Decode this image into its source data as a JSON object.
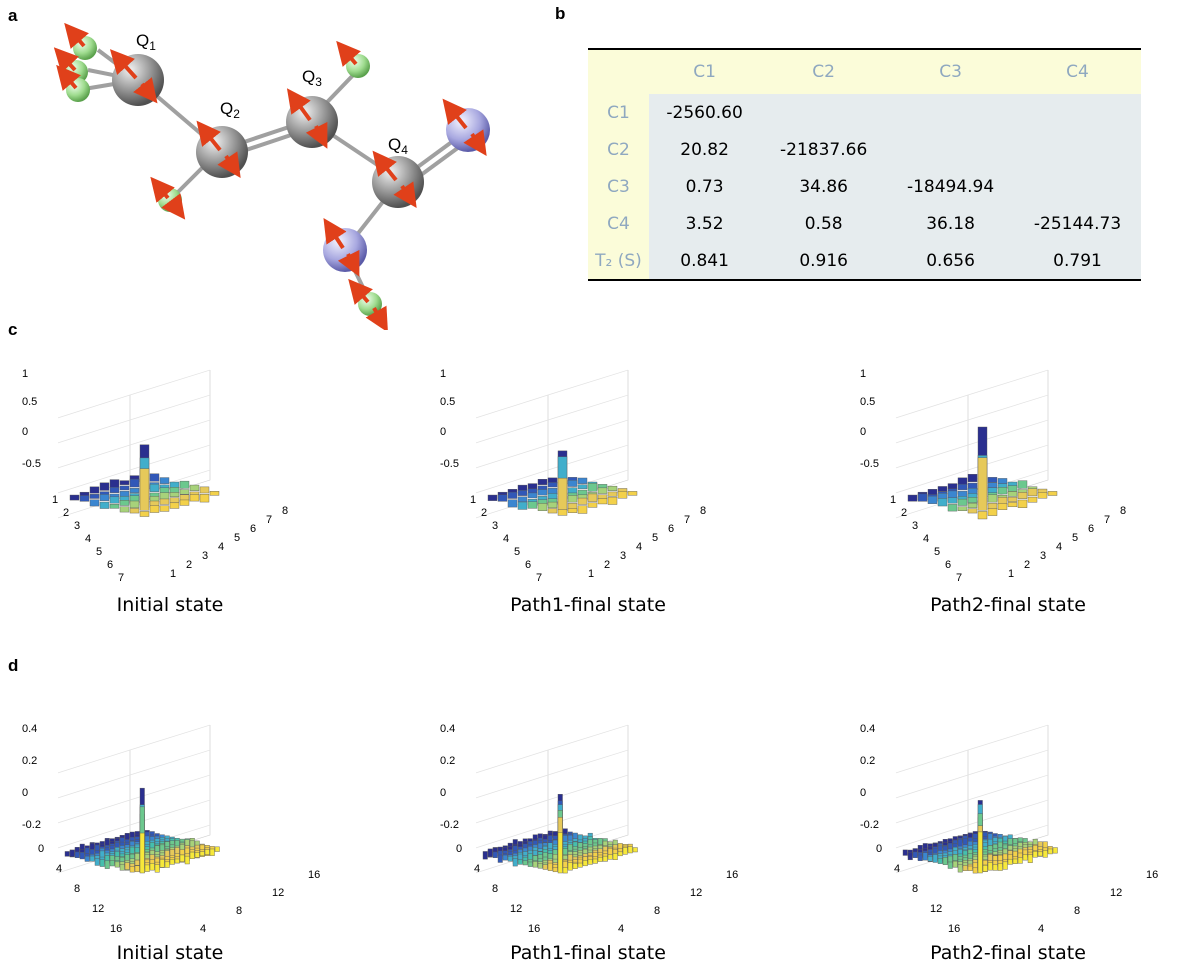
{
  "panels": {
    "a": "a",
    "b": "b",
    "c": "c",
    "d": "d"
  },
  "molecule": {
    "labels": [
      "Q",
      "Q",
      "Q",
      "Q"
    ],
    "subscripts": [
      "1",
      "2",
      "3",
      "4"
    ]
  },
  "table": {
    "headers": [
      "",
      "C1",
      "C2",
      "C3",
      "C4"
    ],
    "rows": [
      {
        "label": "C1",
        "cells": [
          "-2560.60",
          "",
          "",
          ""
        ]
      },
      {
        "label": "C2",
        "cells": [
          "20.82",
          "-21837.66",
          "",
          ""
        ]
      },
      {
        "label": "C3",
        "cells": [
          "0.73",
          "34.86",
          "-18494.94",
          ""
        ]
      },
      {
        "label": "C4",
        "cells": [
          "3.52",
          "0.58",
          "36.18",
          "-25144.73"
        ]
      },
      {
        "label": "T₂ (S)",
        "cells": [
          "0.841",
          "0.916",
          "0.656",
          "0.791"
        ]
      }
    ]
  },
  "panel_c": {
    "captions": [
      "Initial state",
      "Path1-final state",
      "Path2-final state"
    ],
    "z_ticks": [
      "1",
      "0.5",
      "0",
      "-0.5"
    ],
    "axis_ticks": [
      "1",
      "2",
      "3",
      "4",
      "5",
      "6",
      "7",
      "8"
    ]
  },
  "panel_d": {
    "captions": [
      "Initial state",
      "Path1-final state",
      "Path2-final state"
    ],
    "z_ticks": [
      "0.4",
      "0.2",
      "0",
      "-0.2"
    ],
    "left_ticks": [
      "0",
      "4",
      "8",
      "12",
      "16"
    ],
    "right_ticks": [
      "4",
      "8",
      "12",
      "16"
    ]
  },
  "colors": {
    "carbon": "#9a9a9a",
    "hydrogen": "#9fdc8f",
    "nitrogen": "#a8a8e0",
    "spin_arrow": "#e0401a",
    "table_header_bg": "#fbfcd9",
    "table_cell_bg": "#e6ecee"
  }
}
